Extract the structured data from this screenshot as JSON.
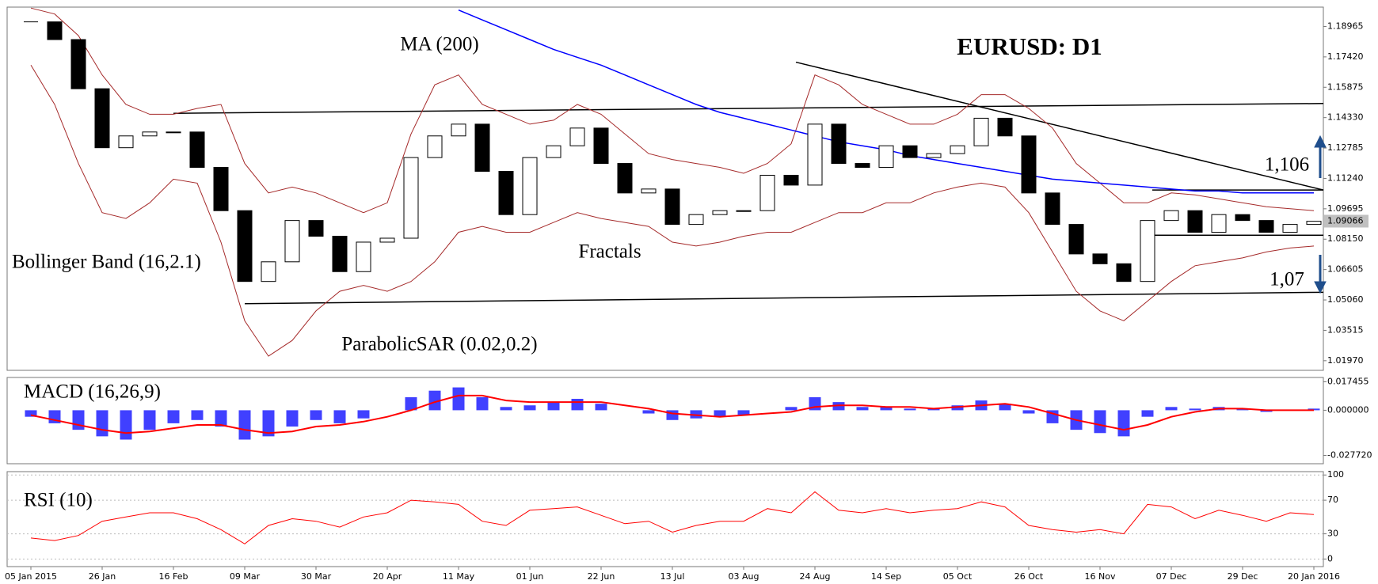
{
  "chart_data": [
    {
      "type": "candlestick",
      "title": "EURUSD: D1",
      "annotations": {
        "ma": "MA (200)",
        "bollinger": "Bollinger Band (16,2.1)",
        "sar": "ParabolicSAR (0.02,0.2)",
        "fractals": "Fractals",
        "upper_level": "1,106",
        "lower_level": "1,07"
      },
      "x": [
        0,
        5,
        10,
        15,
        20,
        25,
        30,
        35,
        40,
        45,
        50,
        55,
        60,
        65,
        70,
        75,
        80,
        85,
        90,
        95,
        100,
        105,
        110,
        115,
        120,
        125,
        130,
        135,
        140,
        145,
        150,
        155,
        160,
        165,
        170,
        175,
        180,
        185,
        190,
        195,
        200,
        205,
        210,
        215,
        220,
        225,
        230,
        235,
        240,
        245,
        250,
        255,
        260,
        265,
        270
      ],
      "close": [
        1.192,
        1.183,
        1.158,
        1.128,
        1.134,
        1.136,
        1.136,
        1.118,
        1.096,
        1.06,
        1.07,
        1.091,
        1.083,
        1.065,
        1.08,
        1.082,
        1.123,
        1.134,
        1.14,
        1.116,
        1.094,
        1.123,
        1.129,
        1.138,
        1.12,
        1.105,
        1.107,
        1.089,
        1.094,
        1.096,
        1.096,
        1.114,
        1.109,
        1.14,
        1.12,
        1.118,
        1.129,
        1.123,
        1.125,
        1.129,
        1.143,
        1.134,
        1.105,
        1.089,
        1.074,
        1.069,
        1.06,
        1.091,
        1.096,
        1.085,
        1.094,
        1.091,
        1.085,
        1.089,
        1.0906
      ],
      "ma": [
        null,
        null,
        null,
        null,
        null,
        null,
        null,
        null,
        null,
        null,
        null,
        null,
        null,
        null,
        null,
        null,
        null,
        null,
        1.198,
        1.193,
        1.188,
        1.183,
        1.178,
        1.174,
        1.17,
        1.165,
        1.16,
        1.155,
        1.15,
        1.146,
        1.143,
        1.14,
        1.137,
        1.134,
        1.131,
        1.129,
        1.127,
        1.124,
        1.122,
        1.12,
        1.118,
        1.116,
        1.114,
        1.112,
        1.111,
        1.11,
        1.109,
        1.108,
        1.107,
        1.106,
        1.106,
        1.105,
        1.105,
        1.105,
        1.105
      ],
      "bb_upper": [
        1.199,
        1.196,
        1.185,
        1.165,
        1.15,
        1.145,
        1.145,
        1.148,
        1.15,
        1.12,
        1.105,
        1.108,
        1.105,
        1.1,
        1.095,
        1.1,
        1.135,
        1.16,
        1.165,
        1.15,
        1.145,
        1.14,
        1.142,
        1.15,
        1.145,
        1.135,
        1.125,
        1.122,
        1.12,
        1.118,
        1.115,
        1.12,
        1.13,
        1.165,
        1.16,
        1.15,
        1.145,
        1.14,
        1.14,
        1.145,
        1.155,
        1.155,
        1.148,
        1.138,
        1.12,
        1.11,
        1.1,
        1.1,
        1.105,
        1.104,
        1.102,
        1.1,
        1.098,
        1.097,
        1.096
      ],
      "bb_lower": [
        1.17,
        1.15,
        1.12,
        1.095,
        1.092,
        1.1,
        1.112,
        1.11,
        1.08,
        1.04,
        1.022,
        1.03,
        1.045,
        1.055,
        1.058,
        1.055,
        1.06,
        1.07,
        1.085,
        1.088,
        1.085,
        1.085,
        1.09,
        1.095,
        1.092,
        1.09,
        1.088,
        1.08,
        1.078,
        1.08,
        1.083,
        1.085,
        1.085,
        1.09,
        1.095,
        1.095,
        1.1,
        1.1,
        1.105,
        1.108,
        1.11,
        1.108,
        1.095,
        1.075,
        1.055,
        1.045,
        1.04,
        1.05,
        1.06,
        1.068,
        1.07,
        1.072,
        1.075,
        1.077,
        1.078
      ],
      "colors": {
        "up": "#ffffff",
        "down": "#000000",
        "ma": "#0000ff",
        "bb": "#a52a2a"
      },
      "trendlines": [
        {
          "x": [
            45,
            272
          ],
          "y": [
            1.0487,
            1.0545
          ]
        },
        {
          "x": [
            30,
            272
          ],
          "y": [
            1.1455,
            1.1505
          ]
        },
        {
          "x": [
            161,
            272
          ],
          "y": [
            1.1715,
            1.1065
          ]
        },
        {
          "x": [
            236,
            272
          ],
          "y": [
            1.1065,
            1.1065
          ]
        },
        {
          "x": [
            236,
            272
          ],
          "y": [
            1.0835,
            1.0835
          ]
        }
      ],
      "last_price": {
        "value": 1.09066,
        "label": "1.09066"
      },
      "xlim": [
        -5,
        272
      ],
      "ylim": [
        1.0148,
        1.1995
      ],
      "yticks": [
        {
          "value": 1.0197,
          "label": "1.01970"
        },
        1.03515,
        {
          "value": 1.0506,
          "label": "1.05060"
        },
        1.06605,
        {
          "value": 1.0815,
          "label": "1.08150"
        },
        1.09695,
        {
          "value": 1.1124,
          "label": "1.11240"
        },
        1.12785,
        {
          "value": 1.1433,
          "label": "1.14330"
        },
        1.15875,
        {
          "value": 1.1742,
          "label": "1.17420"
        },
        1.18965
      ]
    },
    {
      "type": "macd",
      "title": "MACD (16,26,9)",
      "histogram": [
        -0.004,
        -0.008,
        -0.012,
        -0.016,
        -0.018,
        -0.012,
        -0.008,
        -0.006,
        -0.01,
        -0.018,
        -0.016,
        -0.01,
        -0.006,
        -0.008,
        -0.005,
        0,
        0.008,
        0.012,
        0.014,
        0.008,
        0.002,
        0.003,
        0.005,
        0.007,
        0.004,
        0,
        -0.002,
        -0.006,
        -0.005,
        -0.004,
        -0.003,
        0,
        0.002,
        0.008,
        0.005,
        0.002,
        0.002,
        0.001,
        0.001,
        0.003,
        0.006,
        0.004,
        -0.002,
        -0.008,
        -0.012,
        -0.014,
        -0.016,
        -0.004,
        0.002,
        0.001,
        0.002,
        0.001,
        -0.001,
        0,
        0.001
      ],
      "signal": [
        -0.003,
        -0.006,
        -0.009,
        -0.012,
        -0.014,
        -0.013,
        -0.011,
        -0.009,
        -0.009,
        -0.012,
        -0.014,
        -0.013,
        -0.01,
        -0.009,
        -0.007,
        -0.004,
        0,
        0.005,
        0.009,
        0.009,
        0.006,
        0.005,
        0.005,
        0.005,
        0.005,
        0.003,
        0.001,
        -0.002,
        -0.003,
        -0.004,
        -0.003,
        -0.002,
        -0.001,
        0.002,
        0.003,
        0.003,
        0.002,
        0.002,
        0.001,
        0.002,
        0.003,
        0.004,
        0.002,
        -0.002,
        -0.006,
        -0.009,
        -0.012,
        -0.009,
        -0.004,
        -0.001,
        0.001,
        0.001,
        0,
        0,
        0
      ],
      "colors": {
        "histogram": "#0000ff",
        "signal": "#ff0000"
      },
      "ylim": [
        -0.0328,
        0.0201
      ],
      "yticks": [
        {
          "value": -0.02772,
          "label": "-0.027720"
        },
        {
          "value": 0,
          "label": "0.000000"
        },
        0.017455
      ]
    },
    {
      "type": "line",
      "title": "RSI (10)",
      "values": [
        25,
        22,
        28,
        45,
        50,
        55,
        55,
        48,
        35,
        18,
        40,
        48,
        45,
        38,
        50,
        55,
        70,
        68,
        65,
        45,
        40,
        58,
        60,
        62,
        52,
        42,
        45,
        32,
        40,
        45,
        45,
        60,
        55,
        80,
        58,
        55,
        60,
        55,
        58,
        60,
        68,
        62,
        40,
        35,
        32,
        35,
        30,
        65,
        62,
        48,
        58,
        52,
        45,
        55,
        53
      ],
      "color": "#ff0000",
      "ylim": [
        -9,
        104
      ],
      "yticks": [
        0,
        30,
        70,
        100
      ],
      "xticks": [
        {
          "value": 0,
          "label": "05 Jan 2015"
        },
        {
          "value": 15,
          "label": "26 Jan"
        },
        {
          "value": 30,
          "label": "16 Feb"
        },
        {
          "value": 45,
          "label": "09 Mar"
        },
        {
          "value": 60,
          "label": "30 Mar"
        },
        {
          "value": 75,
          "label": "20 Apr"
        },
        {
          "value": 90,
          "label": "11 May"
        },
        {
          "value": 105,
          "label": "01 Jun"
        },
        {
          "value": 120,
          "label": "22 Jun"
        },
        {
          "value": 135,
          "label": "13 Jul"
        },
        {
          "value": 150,
          "label": "03 Aug"
        },
        {
          "value": 165,
          "label": "24 Aug"
        },
        {
          "value": 180,
          "label": "14 Sep"
        },
        {
          "value": 195,
          "label": "05 Oct"
        },
        {
          "value": 210,
          "label": "26 Oct"
        },
        {
          "value": 225,
          "label": "16 Nov"
        },
        {
          "value": 240,
          "label": "07 Dec"
        },
        {
          "value": 255,
          "label": "29 Dec"
        },
        {
          "value": 270,
          "label": "20 Jan 2016"
        }
      ]
    }
  ]
}
